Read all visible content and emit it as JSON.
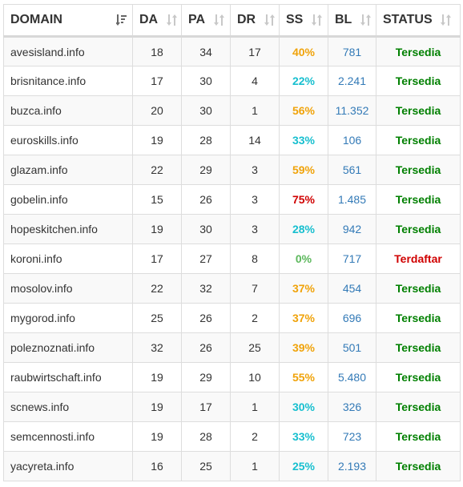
{
  "colors": {
    "ss_orange": "#f0a30a",
    "ss_teal": "#17bfcf",
    "ss_red": "#d00000",
    "ss_green": "#5cb85c",
    "bl_blue": "#337ab7",
    "status_green": "#008000",
    "status_red": "#d00000",
    "sort_icon_inactive": "#c8c8c8",
    "sort_icon_active": "#666666"
  },
  "table": {
    "headers": {
      "domain": "DOMAIN",
      "da": "DA",
      "pa": "PA",
      "dr": "DR",
      "ss": "SS",
      "bl": "BL",
      "status": "STATUS"
    },
    "sort_icons": {
      "domain": "sort-descending-icon",
      "others": "sort-unsorted-icon"
    },
    "rows": [
      {
        "domain": "avesisland.info",
        "da": "18",
        "pa": "34",
        "dr": "17",
        "ss": "40%",
        "ss_color": "#f0a30a",
        "bl": "781",
        "status": "Tersedia",
        "status_color": "#008000"
      },
      {
        "domain": "brisnitance.info",
        "da": "17",
        "pa": "30",
        "dr": "4",
        "ss": "22%",
        "ss_color": "#17bfcf",
        "bl": "2.241",
        "status": "Tersedia",
        "status_color": "#008000"
      },
      {
        "domain": "buzca.info",
        "da": "20",
        "pa": "30",
        "dr": "1",
        "ss": "56%",
        "ss_color": "#f0a30a",
        "bl": "11.352",
        "status": "Tersedia",
        "status_color": "#008000"
      },
      {
        "domain": "euroskills.info",
        "da": "19",
        "pa": "28",
        "dr": "14",
        "ss": "33%",
        "ss_color": "#17bfcf",
        "bl": "106",
        "status": "Tersedia",
        "status_color": "#008000"
      },
      {
        "domain": "glazam.info",
        "da": "22",
        "pa": "29",
        "dr": "3",
        "ss": "59%",
        "ss_color": "#f0a30a",
        "bl": "561",
        "status": "Tersedia",
        "status_color": "#008000"
      },
      {
        "domain": "gobelin.info",
        "da": "15",
        "pa": "26",
        "dr": "3",
        "ss": "75%",
        "ss_color": "#d00000",
        "bl": "1.485",
        "status": "Tersedia",
        "status_color": "#008000"
      },
      {
        "domain": "hopeskitchen.info",
        "da": "19",
        "pa": "30",
        "dr": "3",
        "ss": "28%",
        "ss_color": "#17bfcf",
        "bl": "942",
        "status": "Tersedia",
        "status_color": "#008000"
      },
      {
        "domain": "koroni.info",
        "da": "17",
        "pa": "27",
        "dr": "8",
        "ss": "0%",
        "ss_color": "#5cb85c",
        "bl": "717",
        "status": "Terdaftar",
        "status_color": "#d00000"
      },
      {
        "domain": "mosolov.info",
        "da": "22",
        "pa": "32",
        "dr": "7",
        "ss": "37%",
        "ss_color": "#f0a30a",
        "bl": "454",
        "status": "Tersedia",
        "status_color": "#008000"
      },
      {
        "domain": "mygorod.info",
        "da": "25",
        "pa": "26",
        "dr": "2",
        "ss": "37%",
        "ss_color": "#f0a30a",
        "bl": "696",
        "status": "Tersedia",
        "status_color": "#008000"
      },
      {
        "domain": "poleznoznati.info",
        "da": "32",
        "pa": "26",
        "dr": "25",
        "ss": "39%",
        "ss_color": "#f0a30a",
        "bl": "501",
        "status": "Tersedia",
        "status_color": "#008000"
      },
      {
        "domain": "raubwirtschaft.info",
        "da": "19",
        "pa": "29",
        "dr": "10",
        "ss": "55%",
        "ss_color": "#f0a30a",
        "bl": "5.480",
        "status": "Tersedia",
        "status_color": "#008000"
      },
      {
        "domain": "scnews.info",
        "da": "19",
        "pa": "17",
        "dr": "1",
        "ss": "30%",
        "ss_color": "#17bfcf",
        "bl": "326",
        "status": "Tersedia",
        "status_color": "#008000"
      },
      {
        "domain": "semcennosti.info",
        "da": "19",
        "pa": "28",
        "dr": "2",
        "ss": "33%",
        "ss_color": "#17bfcf",
        "bl": "723",
        "status": "Tersedia",
        "status_color": "#008000"
      },
      {
        "domain": "yacyreta.info",
        "da": "16",
        "pa": "25",
        "dr": "1",
        "ss": "25%",
        "ss_color": "#17bfcf",
        "bl": "2.193",
        "status": "Tersedia",
        "status_color": "#008000"
      }
    ]
  }
}
